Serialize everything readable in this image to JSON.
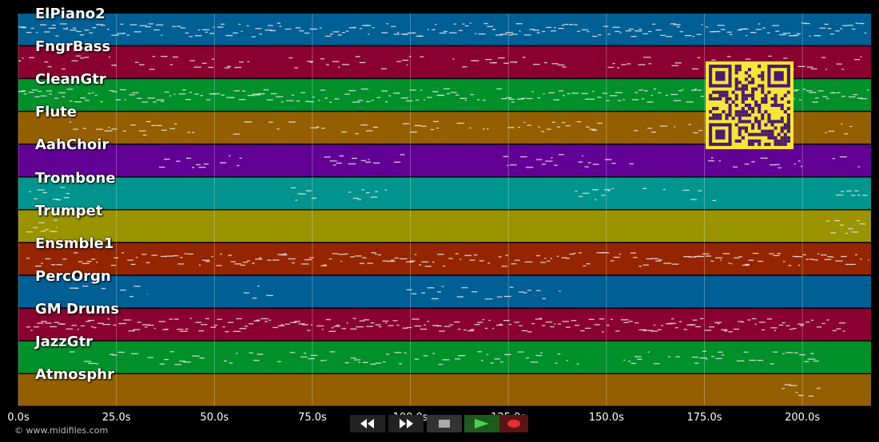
{
  "tracks": [
    {
      "name": "ElPiano2",
      "color": "#005f95"
    },
    {
      "name": "FngrBass",
      "color": "#8a0030"
    },
    {
      "name": "CleanGtr",
      "color": "#00902a"
    },
    {
      "name": "Flute",
      "color": "#945f00"
    },
    {
      "name": "AahChoir",
      "color": "#620095"
    },
    {
      "name": "Trombone",
      "color": "#00948e"
    },
    {
      "name": "Trumpet",
      "color": "#999400"
    },
    {
      "name": "Ensmble1",
      "color": "#952500"
    },
    {
      "name": "PercOrgn",
      "color": "#005f95"
    },
    {
      "name": "GM Drums",
      "color": "#8a0030"
    },
    {
      "name": "JazzGtr",
      "color": "#00902a"
    },
    {
      "name": "Atmosphr",
      "color": "#945f00"
    }
  ],
  "timeline": {
    "ticks": [
      "0.0s",
      "25.0s",
      "50.0s",
      "75.0s",
      "100.0s",
      "125.0s",
      "150.0s",
      "175.0s",
      "200.0s"
    ],
    "seconds_max": 217.5
  },
  "credit": "© www.midifiles.com",
  "controls": {
    "rewind_icon": "rewind-icon",
    "fast_forward_icon": "fast-forward-icon",
    "stop_icon": "stop-icon",
    "play_icon": "play-icon",
    "record_icon": "record-icon"
  },
  "qr_code": {
    "fg": "#4a1a6e",
    "bg": "#f5e63a"
  }
}
